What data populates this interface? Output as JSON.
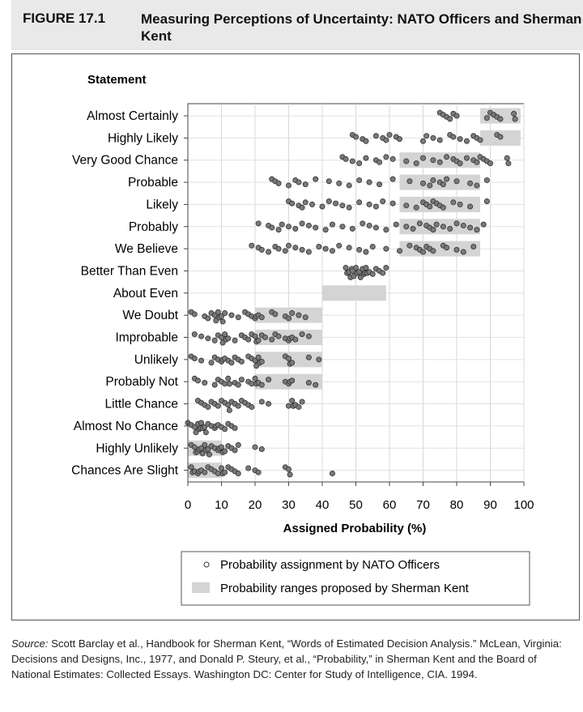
{
  "figure": {
    "number": "FIGURE 17.1",
    "title": "Measuring Perceptions of Uncertainty: NATO Officers and Sherman Kent"
  },
  "chart_data": {
    "type": "scatter",
    "ylabel": "Statement",
    "xlabel": "Assigned Probability (%)",
    "xlim": [
      0,
      100
    ],
    "x_ticks": [
      0,
      10,
      20,
      30,
      40,
      50,
      60,
      70,
      80,
      90,
      100
    ],
    "grid": true,
    "legend_placement": "bottom",
    "categories": [
      "Almost Certainly",
      "Highly Likely",
      "Very Good Chance",
      "Probable",
      "Likely",
      "Probably",
      "We Believe",
      "Better Than Even",
      "About Even",
      "We Doubt",
      "Improbable",
      "Unlikely",
      "Probably Not",
      "Little Chance",
      "Almost No Chance",
      "Highly Unlikely",
      "Chances Are Slight"
    ],
    "series": [
      {
        "name": "Probability assignment by NATO Officers",
        "type": "scatter",
        "color": "#7a7a7a",
        "points": [
          [
            [
              75,
              76,
              77,
              78,
              79,
              80,
              89,
              90,
              91,
              92,
              93,
              97,
              97
            ]
          ],
          [
            [
              49,
              50,
              52,
              53,
              56,
              58,
              59,
              60,
              62,
              63,
              70,
              71,
              73,
              75,
              78,
              79,
              81,
              83,
              85,
              86,
              87,
              92,
              93
            ]
          ],
          [
            [
              46,
              47,
              49,
              51,
              53,
              56,
              57,
              59,
              61,
              65,
              68,
              70,
              73,
              75,
              77,
              79,
              80,
              81,
              83,
              85,
              86,
              87,
              88,
              89,
              90,
              95,
              95
            ]
          ],
          [
            [
              25,
              26,
              27,
              30,
              32,
              33,
              35,
              38,
              42,
              45,
              48,
              51,
              54,
              57,
              61,
              66,
              70,
              72,
              73,
              75,
              76,
              77,
              80,
              84,
              86,
              89
            ]
          ],
          [
            [
              30,
              31,
              33,
              34,
              35,
              37,
              40,
              42,
              44,
              46,
              48,
              51,
              54,
              56,
              58,
              61,
              65,
              68,
              70,
              71,
              72,
              73,
              74,
              75,
              76,
              79,
              81,
              84,
              89
            ]
          ],
          [
            [
              21,
              24,
              25,
              27,
              28,
              30,
              32,
              34,
              36,
              38,
              41,
              43,
              46,
              49,
              52,
              54,
              56,
              59,
              62,
              65,
              67,
              69,
              71,
              72,
              73,
              74,
              76,
              78,
              80,
              82,
              84,
              86,
              88
            ]
          ],
          [
            [
              19,
              21,
              22,
              24,
              26,
              27,
              29,
              30,
              32,
              34,
              36,
              39,
              41,
              43,
              45,
              48,
              51,
              53,
              55,
              59,
              63,
              66,
              68,
              69,
              70,
              71,
              72,
              73,
              76,
              77,
              80,
              82,
              85
            ]
          ],
          [
            [
              47,
              47,
              48,
              48,
              48,
              49,
              49,
              50,
              50,
              51,
              51,
              52,
              52,
              52,
              53,
              53,
              54,
              55,
              56,
              57,
              58,
              59
            ]
          ],
          [
            []
          ],
          [
            [
              1,
              2,
              5,
              6,
              7,
              8,
              8,
              9,
              9,
              10,
              10,
              11,
              13,
              15,
              17,
              18,
              19,
              20,
              20,
              21,
              22,
              25,
              26,
              29,
              30,
              31,
              33,
              35
            ]
          ],
          [
            [
              2,
              4,
              6,
              8,
              9,
              10,
              10,
              11,
              11,
              12,
              14,
              16,
              17,
              18,
              19,
              20,
              20,
              21,
              22,
              23,
              25,
              26,
              27,
              29,
              30,
              30,
              31,
              32,
              34,
              36
            ]
          ],
          [
            [
              1,
              2,
              4,
              7,
              8,
              9,
              10,
              10,
              11,
              12,
              13,
              14,
              15,
              16,
              18,
              19,
              20,
              20,
              21,
              21,
              22,
              29,
              30,
              30,
              31,
              36,
              39
            ]
          ],
          [
            [
              2,
              3,
              5,
              8,
              9,
              10,
              11,
              12,
              12,
              14,
              15,
              16,
              18,
              19,
              20,
              20,
              21,
              22,
              24,
              29,
              30,
              30,
              31,
              36,
              38
            ]
          ],
          [
            [
              3,
              4,
              5,
              6,
              7,
              8,
              9,
              10,
              11,
              12,
              12,
              13,
              14,
              15,
              16,
              17,
              18,
              19,
              22,
              24,
              30,
              31,
              31,
              32,
              33,
              34
            ]
          ],
          [
            [
              0,
              1,
              2,
              2,
              3,
              3,
              3,
              4,
              4,
              5,
              5,
              6,
              7,
              8,
              8,
              9,
              10,
              11,
              12,
              13,
              14
            ]
          ],
          [
            [
              1,
              2,
              2,
              3,
              3,
              4,
              4,
              5,
              5,
              6,
              6,
              7,
              8,
              9,
              9,
              10,
              10,
              11,
              12,
              13,
              14,
              15,
              20,
              22
            ]
          ],
          [
            [
              1,
              1,
              2,
              3,
              3,
              4,
              5,
              6,
              7,
              8,
              9,
              10,
              10,
              11,
              12,
              13,
              14,
              15,
              18,
              20,
              21,
              29,
              30,
              30,
              43
            ]
          ]
        ]
      },
      {
        "name": "Probability ranges proposed by Sherman Kent",
        "type": "range",
        "color": "#d4d4d4",
        "ranges": [
          [
            87,
            99
          ],
          [
            87,
            99
          ],
          [
            63,
            87
          ],
          [
            63,
            87
          ],
          [
            63,
            87
          ],
          [
            63,
            87
          ],
          [
            63,
            87
          ],
          [
            null,
            null
          ],
          [
            40,
            59
          ],
          [
            20,
            40
          ],
          [
            20,
            40
          ],
          [
            20,
            40
          ],
          [
            20,
            40
          ],
          [
            null,
            null
          ],
          [
            null,
            null
          ],
          [
            0,
            10
          ],
          [
            0,
            10
          ]
        ]
      }
    ]
  },
  "source": {
    "lead": "Source:",
    "text": "Scott Barclay et al., Handbook for Sherman Kent, “Words of Estimated Decision Analysis.” McLean, Virginia: Decisions and Designs, Inc., 1977, and Donald P. Steury, et al., “Probability,” in Sherman Kent and the Board of National Estimates: Collected Essays. Washington DC: Center for Study of Intelligence, CIA. 1994."
  }
}
